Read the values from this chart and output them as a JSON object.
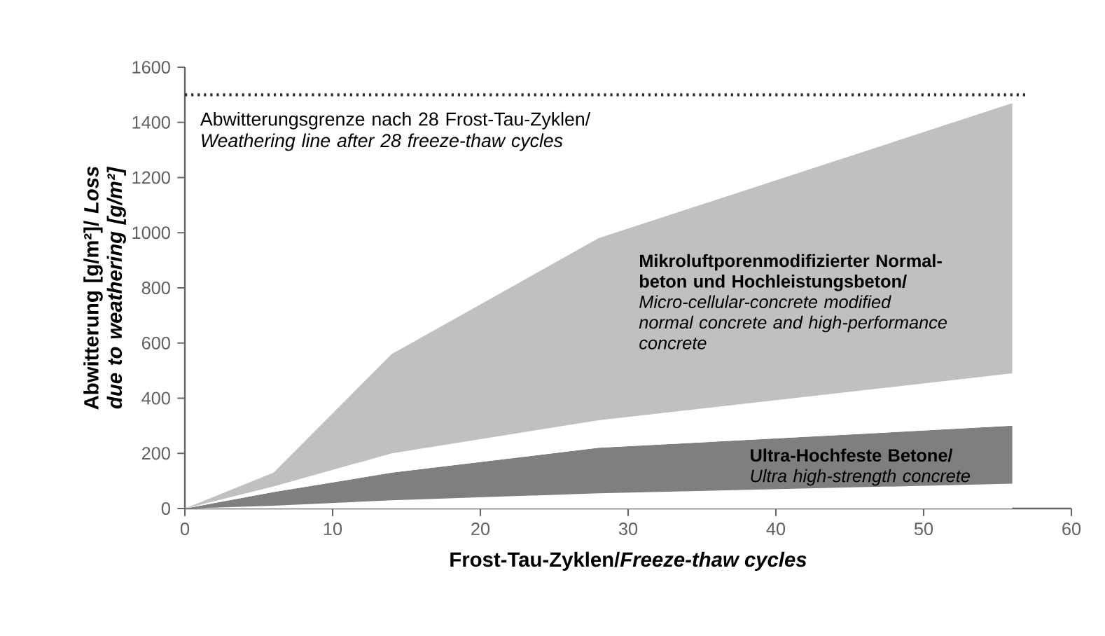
{
  "chart_data": {
    "type": "area",
    "xlabel": "Frost-Tau-Zyklen/*Freeze-thaw cycles*",
    "ylabel": "Abwitterung [g/m²]/ *Loss due to weathering [g/m²]*",
    "xlim": [
      0,
      60
    ],
    "xticks": [
      0,
      10,
      20,
      30,
      40,
      50,
      60
    ],
    "ylim": [
      0,
      1600
    ],
    "yticks": [
      0,
      200,
      400,
      600,
      800,
      1000,
      1200,
      1400,
      1600
    ],
    "stacked": true,
    "x": [
      0,
      6,
      14,
      28,
      56
    ],
    "series": [
      {
        "color": "#ffffff",
        "values": [
          0,
          10,
          30,
          55,
          90
        ]
      },
      {
        "color": "#7f7f7f",
        "values": [
          0,
          50,
          100,
          165,
          210
        ]
      },
      {
        "color": "#ffffff",
        "values": [
          0,
          20,
          70,
          100,
          190
        ]
      },
      {
        "color": "#c0c0c0",
        "values": [
          0,
          50,
          360,
          660,
          980
        ]
      }
    ],
    "ref_lines": [
      {
        "axis": "y",
        "value": 1500,
        "label": "Abwitterungsgrenze nach 28 Frost-Tau-Zyklen/ *Weathering line after 28 freeze-thaw cycles*",
        "line_style": "dotted",
        "color": "#303030"
      }
    ],
    "annotations": [
      "**Mikroluftporenmodifizierter Normal-beton und Hochleistungsbeton/** *Micro-cellular-concrete modified normal concrete and high-performance concrete*",
      "**Ultra-Hochfeste Betone/** *Ultra high-strength concrete*"
    ]
  }
}
